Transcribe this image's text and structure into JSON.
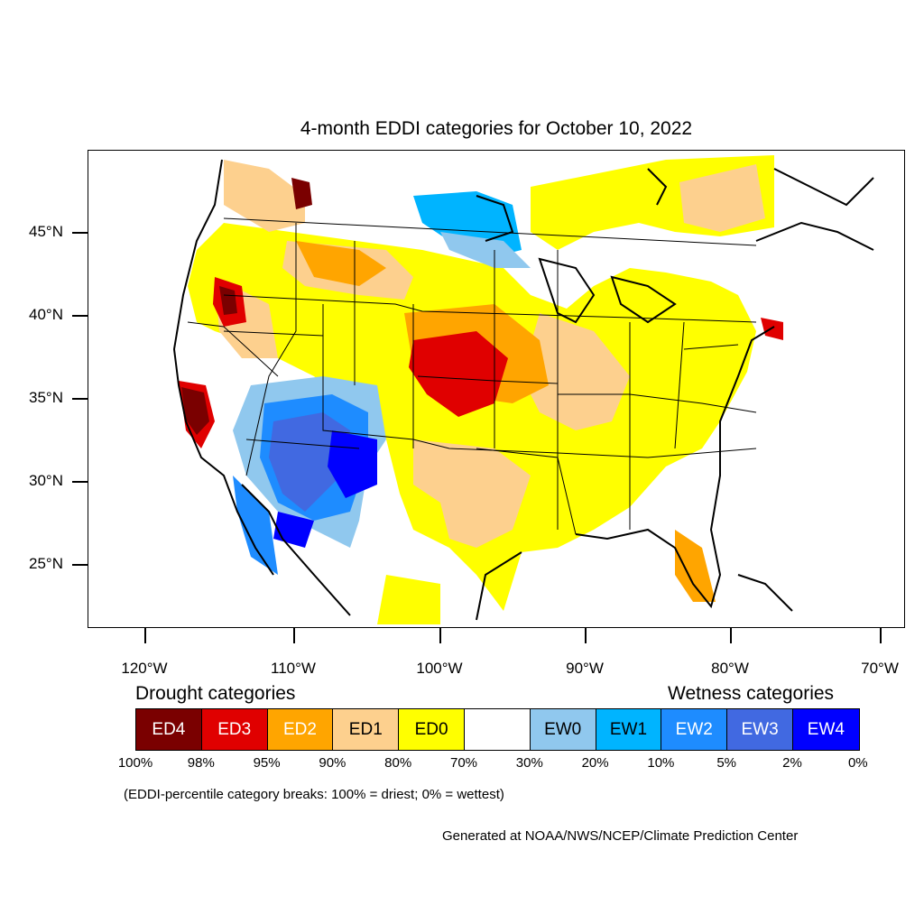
{
  "title": "4-month EDDI categories for October 10, 2022",
  "lat_labels": [
    "45°N",
    "40°N",
    "35°N",
    "30°N",
    "25°N"
  ],
  "lon_labels": [
    "120°W",
    "110°W",
    "100°W",
    "90°W",
    "80°W",
    "70°W"
  ],
  "legend": {
    "drought_title": "Drought categories",
    "wetness_title": "Wetness categories",
    "categories": [
      {
        "label": "ED4",
        "color": "#7a0000",
        "text_color": "#ffffff"
      },
      {
        "label": "ED3",
        "color": "#e00000",
        "text_color": "#ffffff"
      },
      {
        "label": "ED2",
        "color": "#ffa500",
        "text_color": "#ffffff"
      },
      {
        "label": "ED1",
        "color": "#fdd08e",
        "text_color": "#000000"
      },
      {
        "label": "ED0",
        "color": "#ffff00",
        "text_color": "#000000"
      },
      {
        "label": "",
        "color": "#ffffff",
        "text_color": "#000000"
      },
      {
        "label": "EW0",
        "color": "#90c8ee",
        "text_color": "#000000"
      },
      {
        "label": "EW1",
        "color": "#00b4ff",
        "text_color": "#000000"
      },
      {
        "label": "EW2",
        "color": "#1e8cff",
        "text_color": "#ffffff"
      },
      {
        "label": "EW3",
        "color": "#4169e1",
        "text_color": "#ffffff"
      },
      {
        "label": "EW4",
        "color": "#0000ff",
        "text_color": "#ffffff"
      }
    ],
    "percentiles": [
      "100%",
      "98%",
      "95%",
      "90%",
      "80%",
      "70%",
      "30%",
      "20%",
      "10%",
      "5%",
      "2%",
      "0%"
    ]
  },
  "note": "(EDDI-percentile category breaks: 100% = driest; 0% = wettest)",
  "credit": "Generated at NOAA/NWS/NCEP/Climate Prediction Center"
}
